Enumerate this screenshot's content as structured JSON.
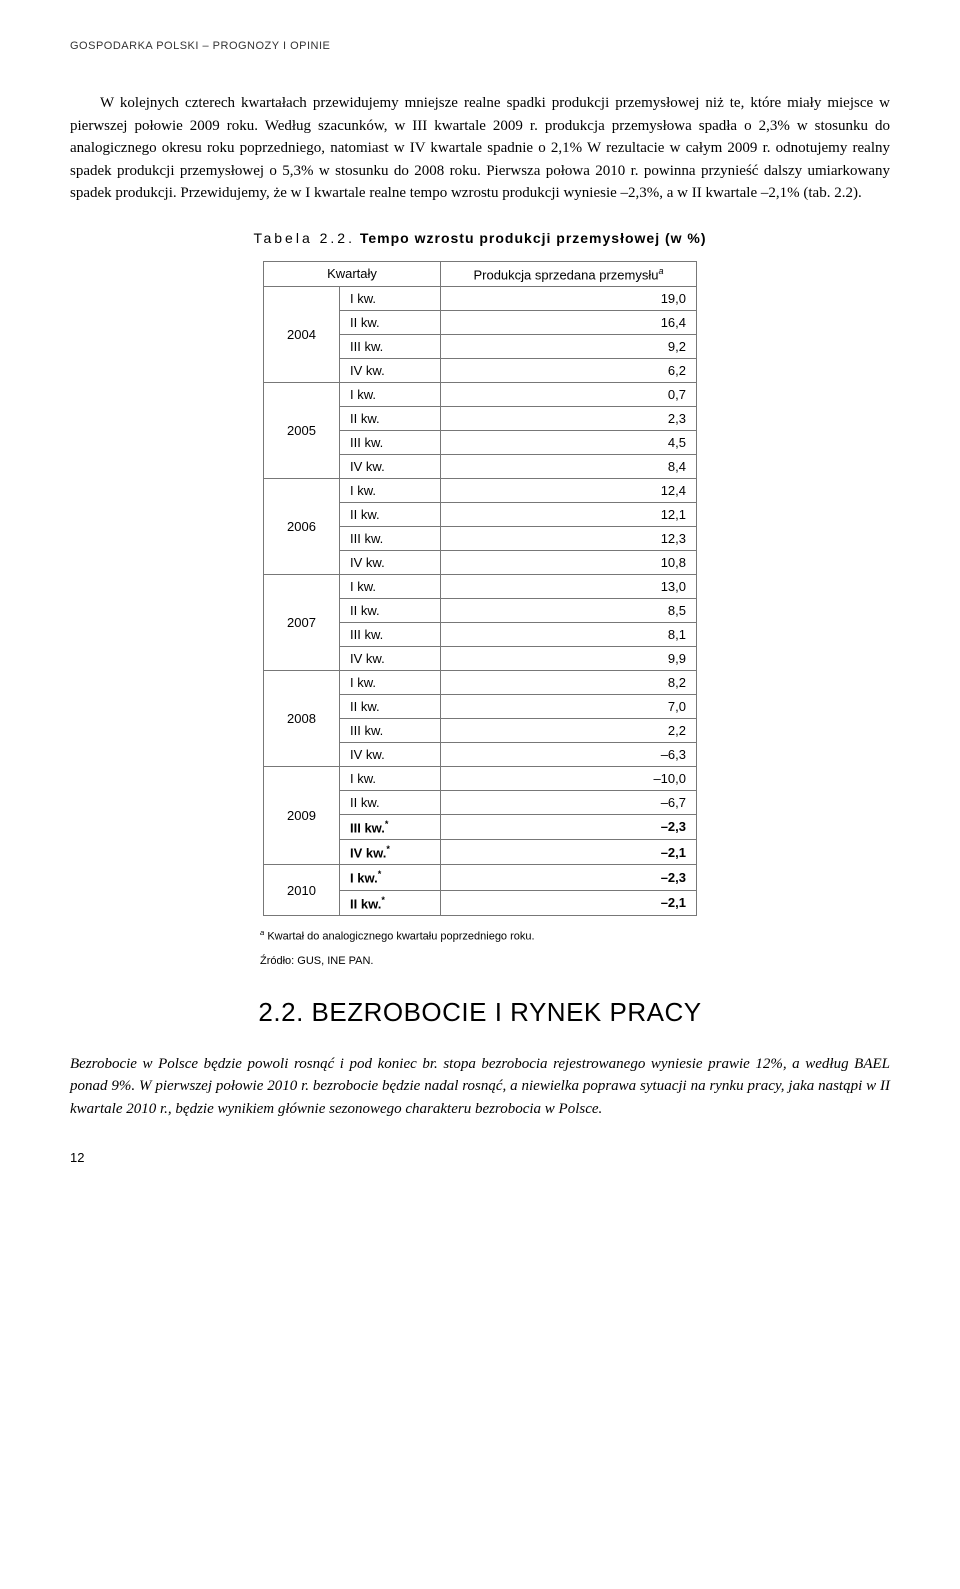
{
  "header": "GOSPODARKA POLSKI – PROGNOZY I OPINIE",
  "paragraph1": "W kolejnych czterech kwartałach przewidujemy mniejsze realne spadki produkcji przemysłowej niż te, które miały miejsce w pierwszej połowie 2009 roku. Według szacunków, w III kwartale 2009 r. produkcja przemysłowa spadła o 2,3% w stosunku do analogicznego okresu roku poprzedniego, natomiast w IV kwartale spadnie o 2,1% W rezultacie w całym 2009 r. odnotujemy realny spadek produkcji przemysłowej o 5,3% w stosunku do 2008 roku. Pierwsza połowa 2010 r. powinna przynieść dalszy umiarkowany spadek produkcji. Przewidujemy, że w I kwartale realne tempo wzrostu produkcji wyniesie –2,3%, a w II kwartale –2,1% (tab. 2.2).",
  "table": {
    "caption_prefix": "Tabela 2.2.",
    "caption_title": "Tempo wzrostu produkcji przemysłowej (w %)",
    "header_col1": "Kwartały",
    "header_col2_pre": "Produkcja sprzedana przemysłu",
    "header_col2_sup": "a",
    "years": [
      {
        "year": "2004",
        "rows": [
          {
            "q": "I kw.",
            "v": "19,0",
            "b": false
          },
          {
            "q": "II kw.",
            "v": "16,4",
            "b": false
          },
          {
            "q": "III kw.",
            "v": "9,2",
            "b": false
          },
          {
            "q": "IV kw.",
            "v": "6,2",
            "b": false
          }
        ]
      },
      {
        "year": "2005",
        "rows": [
          {
            "q": "I kw.",
            "v": "0,7",
            "b": false
          },
          {
            "q": "II kw.",
            "v": "2,3",
            "b": false
          },
          {
            "q": "III kw.",
            "v": "4,5",
            "b": false
          },
          {
            "q": "IV kw.",
            "v": "8,4",
            "b": false
          }
        ]
      },
      {
        "year": "2006",
        "rows": [
          {
            "q": "I kw.",
            "v": "12,4",
            "b": false
          },
          {
            "q": "II kw.",
            "v": "12,1",
            "b": false
          },
          {
            "q": "III kw.",
            "v": "12,3",
            "b": false
          },
          {
            "q": "IV kw.",
            "v": "10,8",
            "b": false
          }
        ]
      },
      {
        "year": "2007",
        "rows": [
          {
            "q": "I kw.",
            "v": "13,0",
            "b": false
          },
          {
            "q": "II kw.",
            "v": "8,5",
            "b": false
          },
          {
            "q": "III kw.",
            "v": "8,1",
            "b": false
          },
          {
            "q": "IV kw.",
            "v": "9,9",
            "b": false
          }
        ]
      },
      {
        "year": "2008",
        "rows": [
          {
            "q": "I kw.",
            "v": "8,2",
            "b": false
          },
          {
            "q": "II kw.",
            "v": "7,0",
            "b": false
          },
          {
            "q": "III kw.",
            "v": "2,2",
            "b": false
          },
          {
            "q": "IV kw.",
            "v": "–6,3",
            "b": false
          }
        ]
      },
      {
        "year": "2009",
        "rows": [
          {
            "q": "I kw.",
            "v": "–10,0",
            "b": false
          },
          {
            "q": "II kw.",
            "v": "–6,7",
            "b": false
          },
          {
            "q": "III kw.",
            "sup": "*",
            "v": "–2,3",
            "b": true
          },
          {
            "q": "IV kw.",
            "sup": "*",
            "v": "–2,1",
            "b": true
          }
        ]
      },
      {
        "year": "2010",
        "rows": [
          {
            "q": "I kw.",
            "sup": "*",
            "v": "–2,3",
            "b": true
          },
          {
            "q": "II kw.",
            "sup": "*",
            "v": "–2,1",
            "b": true
          }
        ]
      }
    ]
  },
  "footnote_sup": "a",
  "footnote_text": " Kwartał do analogicznego kwartału poprzedniego roku.",
  "source_text": "Źródło: GUS, INE PAN.",
  "section_heading": "2.2. BEZROBOCIE I RYNEK PRACY",
  "italic_paragraph": "Bezrobocie w Polsce będzie powoli rosnąć i pod koniec br. stopa bezrobocia rejestrowanego wyniesie prawie 12%, a według BAEL ponad 9%. W pierwszej połowie 2010 r. bezrobocie będzie nadal rosnąć, a niewielka poprawa sytuacji na rynku pracy, jaka nastąpi w II kwartale 2010 r., będzie wynikiem głównie sezonowego charakteru bezrobocia w Polsce.",
  "page_number": "12"
}
